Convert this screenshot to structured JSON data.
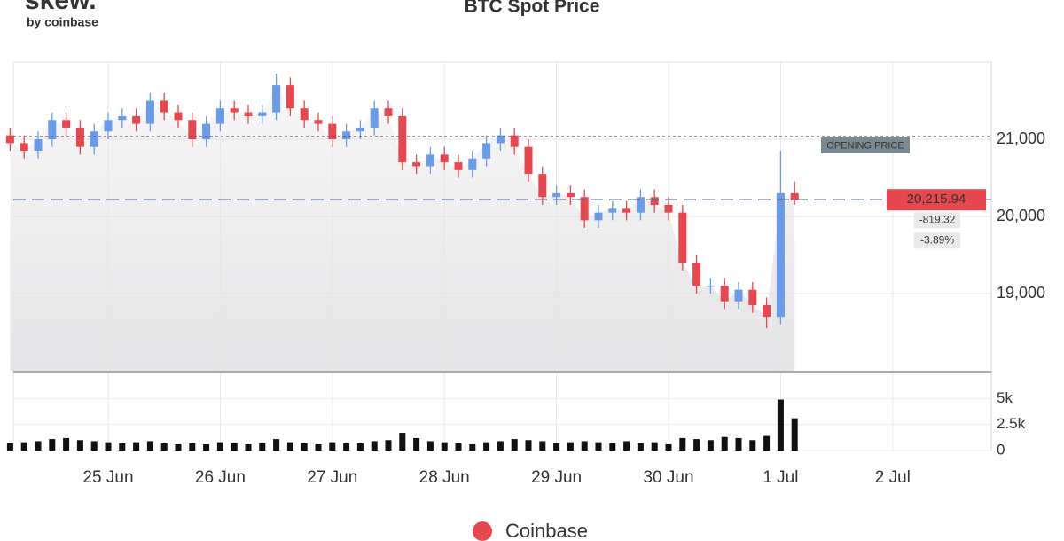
{
  "logo": {
    "name": "skew.",
    "byline": "by coinbase"
  },
  "chart_data": {
    "type": "candlestick",
    "title": "BTC Spot Price",
    "categories": [
      null,
      null,
      null,
      null,
      null,
      null,
      null,
      "25 Jun",
      null,
      null,
      null,
      null,
      null,
      null,
      null,
      "26 Jun",
      null,
      null,
      null,
      null,
      null,
      null,
      null,
      "27 Jun",
      null,
      null,
      null,
      null,
      null,
      null,
      null,
      "28 Jun",
      null,
      null,
      null,
      null,
      null,
      null,
      null,
      "29 Jun",
      null,
      null,
      null,
      null,
      null,
      null,
      null,
      "30 Jun",
      null,
      null,
      null,
      null,
      null,
      null,
      null,
      "1 Jul",
      null,
      null,
      null,
      null,
      null,
      null,
      null,
      "2 Jul",
      null,
      null,
      null,
      null,
      null,
      null
    ],
    "open": [
      21050,
      20950,
      20850,
      21000,
      21250,
      21150,
      20900,
      21100,
      21250,
      21300,
      21200,
      21500,
      21350,
      21250,
      21000,
      21200,
      21400,
      21350,
      21300,
      21350,
      21700,
      21400,
      21250,
      21200,
      21000,
      21100,
      21150,
      21400,
      21300,
      20700,
      20650,
      20800,
      20700,
      20600,
      20750,
      20950,
      21050,
      20900,
      20550,
      20250,
      20300,
      20250,
      19950,
      20050,
      20100,
      20050,
      20250,
      20150,
      20050,
      19400,
      19100,
      19100,
      18900,
      19050,
      18850,
      18700,
      20300,
      null,
      null,
      null,
      null,
      null,
      null,
      null,
      null,
      null,
      null,
      null,
      null,
      null
    ],
    "high": [
      21150,
      21050,
      21100,
      21350,
      21350,
      21250,
      21200,
      21350,
      21400,
      21400,
      21600,
      21600,
      21450,
      21350,
      21300,
      21500,
      21500,
      21450,
      21450,
      21850,
      21800,
      21500,
      21350,
      21300,
      21200,
      21250,
      21500,
      21500,
      21400,
      20800,
      20900,
      20900,
      20800,
      20850,
      21050,
      21150,
      21150,
      21000,
      20650,
      20400,
      20400,
      20350,
      20150,
      20200,
      20200,
      20350,
      20350,
      20250,
      20150,
      19500,
      19200,
      19200,
      19150,
      19150,
      18950,
      20850,
      20450,
      null,
      null,
      null,
      null,
      null,
      null,
      null,
      null,
      null,
      null,
      null,
      null,
      null
    ],
    "low": [
      20850,
      20750,
      20750,
      20900,
      21050,
      20800,
      20800,
      21000,
      21150,
      21100,
      21100,
      21250,
      21150,
      20900,
      20900,
      21100,
      21250,
      21200,
      21200,
      21250,
      21300,
      21150,
      21100,
      20900,
      20900,
      21000,
      21050,
      21200,
      20600,
      20550,
      20550,
      20600,
      20500,
      20500,
      20650,
      20850,
      20800,
      20450,
      20150,
      20150,
      20150,
      19850,
      19850,
      19950,
      19950,
      19950,
      20050,
      19950,
      19300,
      19000,
      19000,
      18800,
      18800,
      18750,
      18550,
      18600,
      20150,
      null,
      null,
      null,
      null,
      null,
      null,
      null,
      null,
      null,
      null,
      null,
      null,
      null
    ],
    "close": [
      20950,
      20850,
      21000,
      21250,
      21150,
      20900,
      21100,
      21250,
      21300,
      21200,
      21500,
      21350,
      21250,
      21000,
      21200,
      21400,
      21350,
      21300,
      21350,
      21700,
      21400,
      21250,
      21200,
      21000,
      21100,
      21150,
      21400,
      21300,
      20700,
      20650,
      20800,
      20700,
      20600,
      20750,
      20950,
      21050,
      20900,
      20550,
      20250,
      20300,
      20250,
      19950,
      20050,
      20100,
      20050,
      20250,
      20150,
      20050,
      19400,
      19100,
      19100,
      18900,
      19050,
      18850,
      18700,
      20300,
      20215.94,
      null,
      null,
      null,
      null,
      null,
      null,
      null,
      null,
      null,
      null,
      null,
      null,
      null
    ],
    "volume": [
      700,
      800,
      900,
      1100,
      1200,
      1000,
      900,
      800,
      700,
      800,
      900,
      700,
      600,
      700,
      600,
      800,
      700,
      600,
      700,
      1100,
      800,
      700,
      600,
      800,
      700,
      700,
      900,
      1000,
      1700,
      1200,
      900,
      800,
      700,
      600,
      800,
      900,
      1100,
      1000,
      900,
      700,
      800,
      900,
      800,
      700,
      900,
      700,
      800,
      600,
      1200,
      1100,
      1000,
      1300,
      1200,
      1000,
      1400,
      4900,
      3100,
      null,
      null,
      null,
      null,
      null,
      null,
      null,
      null,
      null,
      null,
      null,
      null,
      null
    ],
    "up_color": "#6a9be8",
    "down_color": "#e8474f",
    "volume_color": "#111111",
    "ylim": [
      18000,
      22000
    ],
    "yticks": [
      {
        "value": 19000,
        "label": "19,000"
      },
      {
        "value": 20000,
        "label": "20,000"
      },
      {
        "value": 21000,
        "label": "21,000"
      }
    ],
    "y2lim": [
      0,
      7500
    ],
    "y2ticks": [
      0,
      {
        "value": 2500,
        "label": "2.5k"
      },
      {
        "value": 5000,
        "label": "5k"
      }
    ],
    "grid": true,
    "annotations": {
      "opening_price": 21035.26,
      "opening_label": "OPENING PRICE",
      "last_price": 20215.94,
      "last_price_label": "20,215.94",
      "change": -819.32,
      "change_pct": -3.89,
      "change_pct_label": "-3.89%"
    },
    "legend": [
      {
        "name": "Coinbase",
        "color": "#e8474f"
      }
    ]
  }
}
